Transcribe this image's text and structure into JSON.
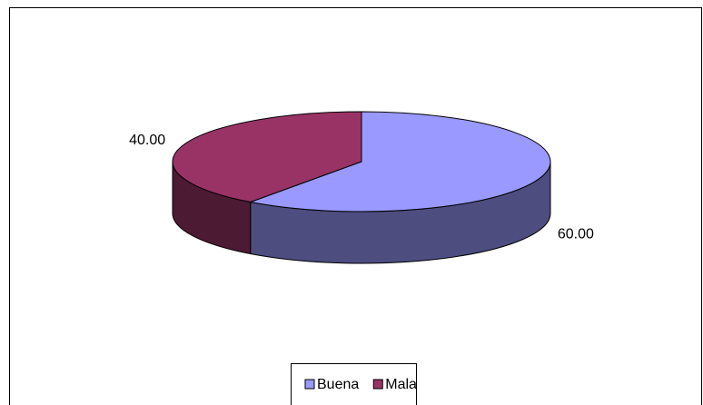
{
  "chart_data": {
    "type": "pie",
    "categories": [
      "Buena",
      "Mala"
    ],
    "values": [
      60,
      40
    ],
    "value_labels": [
      "60.00",
      "40.00"
    ],
    "colors": [
      "#9999ff",
      "#993366"
    ],
    "legend": "bottom"
  }
}
